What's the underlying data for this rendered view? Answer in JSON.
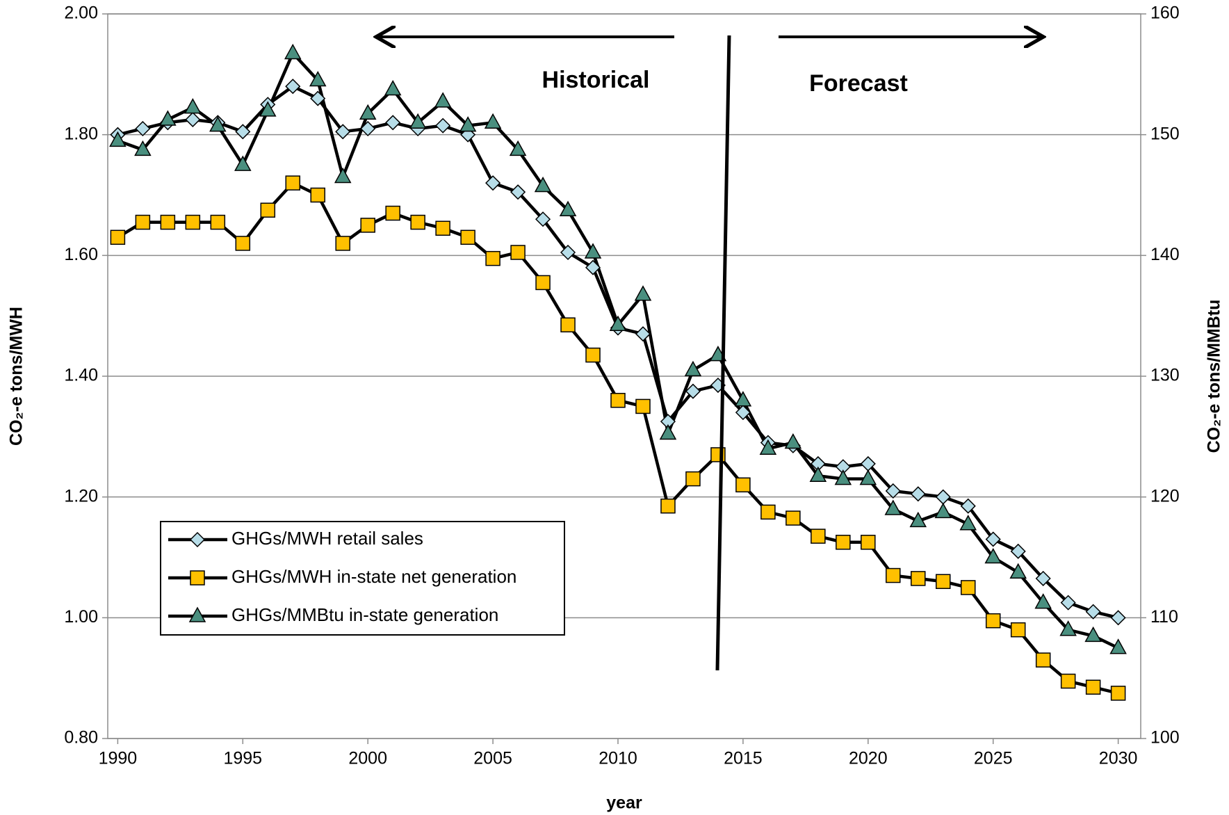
{
  "chart_data": {
    "type": "line",
    "annotations": [
      "Historical",
      "Forecast"
    ],
    "x_label": "year",
    "y_label": "CO₂-e tons/MWH",
    "y2_label": "CO₂-e tons/MMBtu",
    "x": [
      1990,
      1991,
      1992,
      1993,
      1994,
      1995,
      1996,
      1997,
      1998,
      1999,
      2000,
      2001,
      2002,
      2003,
      2004,
      2005,
      2006,
      2007,
      2008,
      2009,
      2010,
      2011,
      2012,
      2013,
      2014,
      2015,
      2016,
      2017,
      2018,
      2019,
      2020,
      2021,
      2022,
      2023,
      2024,
      2025,
      2026,
      2027,
      2028,
      2029,
      2030
    ],
    "xlim": [
      1989.6,
      2030.9
    ],
    "xticks": [
      1990,
      1995,
      2000,
      2005,
      2010,
      2015,
      2020,
      2025,
      2030
    ],
    "ylim": [
      0.8,
      2.0
    ],
    "yticks": [
      {
        "value": 0.8,
        "label": "0.80"
      },
      {
        "value": 1.0,
        "label": "1.00"
      },
      {
        "value": 1.2,
        "label": "1.20"
      },
      {
        "value": 1.4,
        "label": "1.40"
      },
      {
        "value": 1.6,
        "label": "1.60"
      },
      {
        "value": 1.8,
        "label": "1.80"
      },
      {
        "value": 2.0,
        "label": "2.00"
      }
    ],
    "y2lim": [
      100,
      160
    ],
    "y2ticks": [
      100,
      110,
      120,
      130,
      140,
      150,
      160
    ],
    "grid": true,
    "legend": "lower left",
    "series": [
      {
        "name": "GHGs/MWH retail sales",
        "color": "#b7dde8",
        "marker": "diamond",
        "values": [
          1.8,
          1.81,
          1.82,
          1.825,
          1.82,
          1.805,
          1.85,
          1.88,
          1.86,
          1.805,
          1.81,
          1.82,
          1.81,
          1.815,
          1.8,
          1.72,
          1.705,
          1.66,
          1.605,
          1.58,
          1.48,
          1.47,
          1.325,
          1.375,
          1.385,
          1.34,
          1.29,
          1.285,
          1.255,
          1.25,
          1.255,
          1.21,
          1.205,
          1.2,
          1.185,
          1.13,
          1.11,
          1.065,
          1.025,
          1.01,
          1.0
        ]
      },
      {
        "name": "GHGs/MWH in-state net generation",
        "color": "#ffc000",
        "marker": "square",
        "values": [
          1.63,
          1.655,
          1.655,
          1.655,
          1.655,
          1.62,
          1.675,
          1.72,
          1.7,
          1.62,
          1.65,
          1.67,
          1.655,
          1.645,
          1.63,
          1.595,
          1.605,
          1.555,
          1.485,
          1.435,
          1.36,
          1.35,
          1.185,
          1.23,
          1.27,
          1.22,
          1.175,
          1.165,
          1.135,
          1.125,
          1.125,
          1.07,
          1.065,
          1.06,
          1.05,
          0.995,
          0.98,
          0.93,
          0.895,
          0.885,
          0.875
        ]
      },
      {
        "name": "GHGs/MMBtu in-state generation",
        "color": "#4a8f7f",
        "marker": "triangle",
        "axis": "y2",
        "values": [
          149.5,
          148.75,
          151.25,
          152.25,
          150.75,
          147.5,
          152,
          156.75,
          154.5,
          146.5,
          151.75,
          153.75,
          151,
          152.75,
          150.75,
          151,
          148.75,
          145.75,
          143.75,
          140.25,
          134.25,
          136.75,
          125.25,
          130.5,
          131.75,
          128,
          124,
          124.5,
          121.75,
          121.5,
          121.5,
          119,
          118,
          118.75,
          117.75,
          115,
          113.75,
          111.25,
          109,
          108.5,
          107.5
        ]
      }
    ]
  }
}
